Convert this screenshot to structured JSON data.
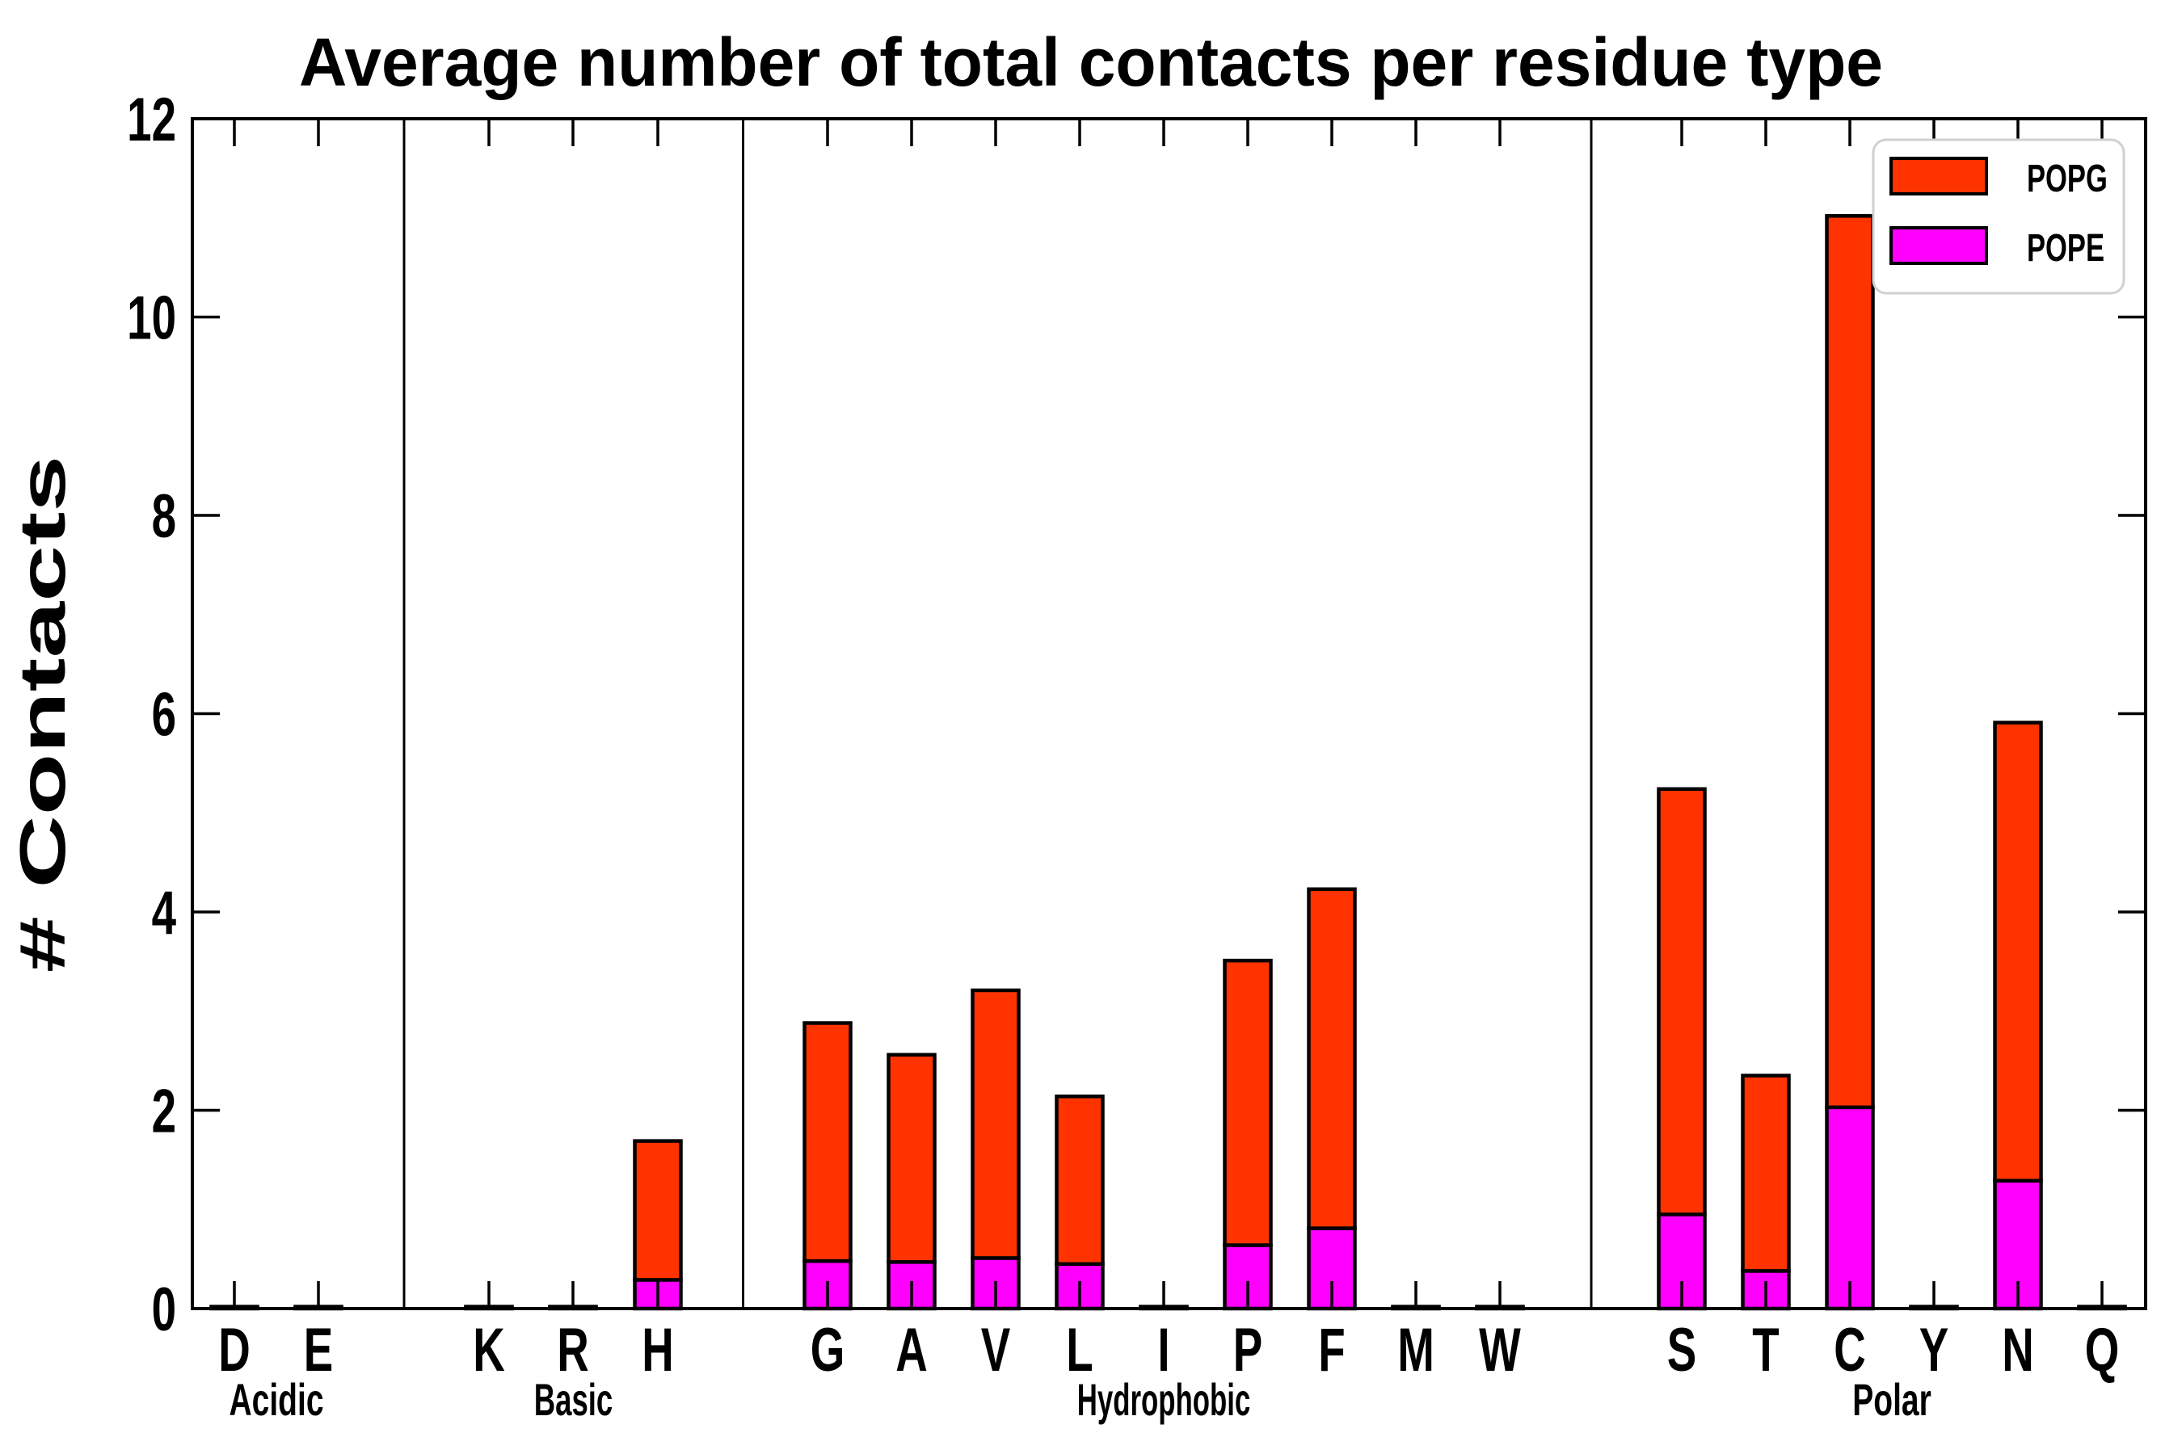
{
  "figure": {
    "background": "#ffffff"
  },
  "chart_data": {
    "type": "bar",
    "stacked": true,
    "title": "Average number of total contacts per residue type",
    "ylabel": "# Contacts",
    "xlabel": "",
    "ylim": [
      0,
      12
    ],
    "yticks": [
      0,
      2,
      4,
      6,
      8,
      10,
      12
    ],
    "grid": false,
    "legend_position": "upper right",
    "legend": [
      {
        "label": "POPG",
        "color": "#ff3300"
      },
      {
        "label": "POPE",
        "color": "#ff00ff"
      }
    ],
    "categories": [
      "D",
      "E",
      "K",
      "R",
      "H",
      "G",
      "A",
      "V",
      "L",
      "I",
      "P",
      "F",
      "M",
      "W",
      "S",
      "T",
      "C",
      "Y",
      "N",
      "Q"
    ],
    "groups": [
      {
        "label": "Acidic",
        "categories": [
          "D",
          "E"
        ]
      },
      {
        "label": "Basic",
        "categories": [
          "K",
          "R",
          "H"
        ]
      },
      {
        "label": "Hydrophobic",
        "categories": [
          "G",
          "A",
          "V",
          "L",
          "I",
          "P",
          "F",
          "M",
          "W"
        ]
      },
      {
        "label": "Polar",
        "categories": [
          "S",
          "T",
          "C",
          "Y",
          "N",
          "Q"
        ]
      }
    ],
    "series": [
      {
        "name": "POPE",
        "color": "#ff00ff",
        "values": [
          0.01,
          0.01,
          0.01,
          0.01,
          0.29,
          0.48,
          0.47,
          0.51,
          0.45,
          0.01,
          0.64,
          0.81,
          0.01,
          0.01,
          0.95,
          0.38,
          2.03,
          0.01,
          1.29,
          0.01
        ]
      },
      {
        "name": "POPG",
        "color": "#ff3300",
        "values": [
          0.01,
          0.01,
          0.01,
          0.01,
          1.4,
          2.4,
          2.09,
          2.7,
          1.69,
          0.01,
          2.87,
          3.42,
          0.01,
          0.01,
          4.29,
          1.97,
          8.99,
          0.01,
          4.62,
          0.01
        ]
      }
    ],
    "totals": [
      0.02,
      0.02,
      0.02,
      0.02,
      1.69,
      2.88,
      2.56,
      3.21,
      2.14,
      0.02,
      3.51,
      4.23,
      0.02,
      0.02,
      5.24,
      2.35,
      11.02,
      0.02,
      5.91,
      0.02
    ],
    "colors": {
      "bar_edge": "#000000",
      "axis": "#000000",
      "legend_border": "#d0d0d0"
    }
  }
}
